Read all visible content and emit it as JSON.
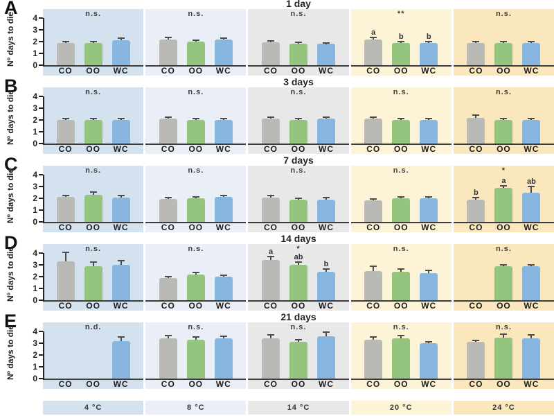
{
  "figure": {
    "y_axis_label": "Nº days to die",
    "y_ticks": [
      0,
      1,
      2,
      3,
      4
    ],
    "bar_series": [
      "CO",
      "OO",
      "WC"
    ],
    "bar_colors": {
      "CO": "#b9b9b6",
      "OO": "#94c47d",
      "WC": "#87b7e0"
    },
    "error_color": "#4c4c4c",
    "column_backgrounds": [
      "#d4e1ef",
      "#e9eef7",
      "#e8e8e8",
      "#fdf3d6",
      "#fae7bd"
    ],
    "temperature_labels": [
      "4 °C",
      "8 °C",
      "14 °C",
      "20 °C",
      "24 °C"
    ]
  },
  "chart_data": [
    {
      "type": "bar",
      "panel": "A",
      "title": "1 day",
      "ylabel": "Nº days to die",
      "ylim": [
        0,
        4
      ],
      "categories": [
        "CO",
        "OO",
        "WC"
      ],
      "groups": [
        {
          "temp": "4 °C",
          "sig": "n.s.",
          "values": [
            1.9,
            1.9,
            2.1
          ],
          "errors": [
            0.05,
            0.05,
            0.12
          ],
          "letters": [
            null,
            null,
            null
          ]
        },
        {
          "temp": "8 °C",
          "sig": "n.s.",
          "values": [
            2.2,
            2.0,
            2.15
          ],
          "errors": [
            0.12,
            0.05,
            0.1
          ],
          "letters": [
            null,
            null,
            null
          ]
        },
        {
          "temp": "14 °C",
          "sig": "n.s.",
          "values": [
            1.95,
            1.85,
            1.8
          ],
          "errors": [
            0.08,
            0.05,
            0.05
          ],
          "letters": [
            null,
            null,
            null
          ]
        },
        {
          "temp": "20 °C",
          "sig": "**",
          "values": [
            2.2,
            1.9,
            1.9
          ],
          "errors": [
            0.12,
            0.05,
            0.05
          ],
          "letters": [
            "a",
            "b",
            "b"
          ]
        },
        {
          "temp": "24 °C",
          "sig": "n.s.",
          "values": [
            1.9,
            1.9,
            1.9
          ],
          "errors": [
            0.05,
            0.05,
            0.05
          ],
          "letters": [
            null,
            null,
            null
          ]
        }
      ]
    },
    {
      "type": "bar",
      "panel": "B",
      "title": "3 days",
      "ylabel": "Nº days to die",
      "ylim": [
        0,
        4
      ],
      "categories": [
        "CO",
        "OO",
        "WC"
      ],
      "groups": [
        {
          "temp": "4 °C",
          "sig": "n.s.",
          "values": [
            2.0,
            2.0,
            2.0
          ],
          "errors": [
            0.05,
            0.05,
            0.05
          ],
          "letters": [
            null,
            null,
            null
          ]
        },
        {
          "temp": "8 °C",
          "sig": "n.s.",
          "values": [
            2.1,
            2.0,
            2.0
          ],
          "errors": [
            0.08,
            0.05,
            0.05
          ],
          "letters": [
            null,
            null,
            null
          ]
        },
        {
          "temp": "14 °C",
          "sig": "n.s.",
          "values": [
            2.1,
            2.0,
            2.1
          ],
          "errors": [
            0.1,
            0.08,
            0.08
          ],
          "letters": [
            null,
            null,
            null
          ]
        },
        {
          "temp": "20 °C",
          "sig": "n.s.",
          "values": [
            2.1,
            2.0,
            2.0
          ],
          "errors": [
            0.1,
            0.05,
            0.05
          ],
          "letters": [
            null,
            null,
            null
          ]
        },
        {
          "temp": "24 °C",
          "sig": "n.s.",
          "values": [
            2.2,
            2.0,
            2.0
          ],
          "errors": [
            0.15,
            0.05,
            0.05
          ],
          "letters": [
            null,
            null,
            null
          ]
        }
      ]
    },
    {
      "type": "bar",
      "panel": "C",
      "title": "7 days",
      "ylabel": "Nº days to die",
      "ylim": [
        0,
        4
      ],
      "categories": [
        "CO",
        "OO",
        "WC"
      ],
      "groups": [
        {
          "temp": "4 °C",
          "sig": "n.s.",
          "values": [
            2.1,
            2.3,
            2.05
          ],
          "errors": [
            0.1,
            0.15,
            0.1
          ],
          "letters": [
            null,
            null,
            null
          ]
        },
        {
          "temp": "8 °C",
          "sig": "n.s.",
          "values": [
            1.95,
            2.0,
            2.1
          ],
          "errors": [
            0.05,
            0.05,
            0.08
          ],
          "letters": [
            null,
            null,
            null
          ]
        },
        {
          "temp": "14 °C",
          "sig": "n.s.",
          "values": [
            2.05,
            1.9,
            1.9
          ],
          "errors": [
            0.15,
            0.05,
            0.08
          ],
          "letters": [
            null,
            null,
            null
          ]
        },
        {
          "temp": "20 °C",
          "sig": "n.s.",
          "values": [
            1.85,
            2.0,
            2.0
          ],
          "errors": [
            0.05,
            0.08,
            0.08
          ],
          "letters": [
            null,
            null,
            null
          ]
        },
        {
          "temp": "24 °C",
          "sig": "*",
          "values": [
            1.9,
            2.9,
            2.5
          ],
          "errors": [
            0.08,
            0.1,
            0.45
          ],
          "letters": [
            "b",
            "a",
            "ab"
          ]
        }
      ]
    },
    {
      "type": "bar",
      "panel": "D",
      "title": "14 days",
      "ylabel": "Nº days to die",
      "ylim": [
        0,
        4
      ],
      "categories": [
        "CO",
        "OO",
        "WC"
      ],
      "groups": [
        {
          "temp": "4 °C",
          "sig": "n.s.",
          "values": [
            3.3,
            2.9,
            3.0
          ],
          "errors": [
            0.7,
            0.25,
            0.3
          ],
          "letters": [
            null,
            null,
            null
          ]
        },
        {
          "temp": "8 °C",
          "sig": "n.s.",
          "values": [
            1.9,
            2.2,
            2.0
          ],
          "errors": [
            0.05,
            0.12,
            0.08
          ],
          "letters": [
            null,
            null,
            null
          ]
        },
        {
          "temp": "14 °C",
          "sig": "*",
          "values": [
            3.4,
            3.0,
            2.4
          ],
          "errors": [
            0.25,
            0.2,
            0.2
          ],
          "letters": [
            "a",
            "ab",
            "b"
          ]
        },
        {
          "temp": "20 °C",
          "sig": "n.s.",
          "values": [
            2.5,
            2.4,
            2.3
          ],
          "errors": [
            0.3,
            0.2,
            0.15
          ],
          "letters": [
            null,
            null,
            null
          ]
        },
        {
          "temp": "24 °C",
          "sig": "n.s.",
          "values": [
            null,
            2.9,
            2.9
          ],
          "errors": [
            null,
            0.05,
            0.05
          ],
          "letters": [
            null,
            null,
            null
          ]
        }
      ]
    },
    {
      "type": "bar",
      "panel": "E",
      "title": "21 days",
      "ylabel": "Nº days to die",
      "ylim": [
        0,
        4
      ],
      "categories": [
        "CO",
        "OO",
        "WC"
      ],
      "groups": [
        {
          "temp": "4 °C",
          "sig": "n.d.",
          "values": [
            null,
            null,
            3.2
          ],
          "errors": [
            null,
            null,
            0.25
          ],
          "letters": [
            null,
            null,
            null
          ]
        },
        {
          "temp": "8 °C",
          "sig": "n.s.",
          "values": [
            3.4,
            3.3,
            3.4
          ],
          "errors": [
            0.2,
            0.15,
            0.15
          ],
          "letters": [
            null,
            null,
            null
          ]
        },
        {
          "temp": "14 °C",
          "sig": "n.s.",
          "values": [
            3.4,
            3.1,
            3.6
          ],
          "errors": [
            0.25,
            0.15,
            0.3
          ],
          "letters": [
            null,
            null,
            null
          ]
        },
        {
          "temp": "20 °C",
          "sig": "n.s.",
          "values": [
            3.3,
            3.4,
            3.0
          ],
          "errors": [
            0.2,
            0.2,
            0.08
          ],
          "letters": [
            null,
            null,
            null
          ]
        },
        {
          "temp": "24 °C",
          "sig": "n.s.",
          "values": [
            3.1,
            3.5,
            3.4
          ],
          "errors": [
            0.08,
            0.2,
            0.25
          ],
          "letters": [
            null,
            null,
            null
          ]
        }
      ]
    }
  ]
}
